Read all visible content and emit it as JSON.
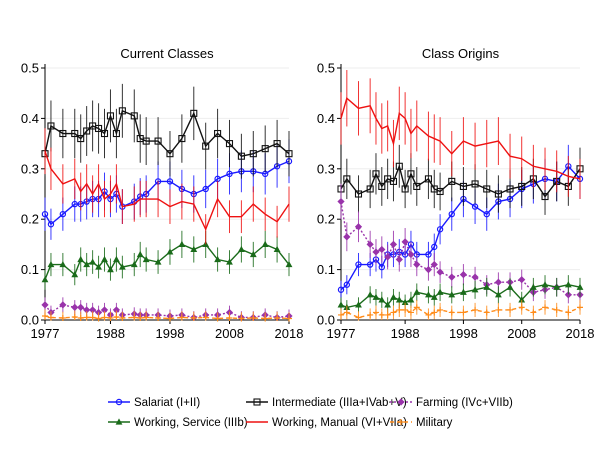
{
  "chart_data": [
    {
      "type": "line",
      "title": "Current Classes",
      "xlabel": "",
      "ylabel": "",
      "xlim": [
        1977,
        2018
      ],
      "ylim": [
        0,
        0.5
      ],
      "x_ticks": [
        1977,
        1988,
        1998,
        2008,
        2018
      ],
      "y_ticks": [
        "0.0",
        "0.1",
        "0.2",
        "0.3",
        "0.4",
        "0.5"
      ],
      "grid": "horizontal",
      "legend_position": "bottom",
      "series": [
        {
          "name": "Salariat (I+II)",
          "color": "#1a1aff",
          "marker": "circle",
          "x": [
            1977,
            1978,
            1980,
            1982,
            1983,
            1984,
            1985,
            1986,
            1987,
            1988,
            1989,
            1990,
            1992,
            1993,
            1994,
            1996,
            1998,
            2000,
            2002,
            2004,
            2006,
            2008,
            2010,
            2012,
            2014,
            2016,
            2018
          ],
          "y": [
            0.21,
            0.19,
            0.21,
            0.23,
            0.23,
            0.235,
            0.24,
            0.24,
            0.255,
            0.24,
            0.25,
            0.225,
            0.235,
            0.245,
            0.25,
            0.275,
            0.275,
            0.26,
            0.25,
            0.26,
            0.28,
            0.29,
            0.295,
            0.295,
            0.29,
            0.305,
            0.315
          ]
        },
        {
          "name": "Intermediate (IIIa+IVab+V)",
          "color": "#111111",
          "marker": "square",
          "x": [
            1977,
            1978,
            1980,
            1982,
            1983,
            1984,
            1985,
            1986,
            1987,
            1988,
            1989,
            1990,
            1992,
            1993,
            1994,
            1996,
            1998,
            2000,
            2002,
            2004,
            2006,
            2008,
            2010,
            2012,
            2014,
            2016,
            2018
          ],
          "y": [
            0.33,
            0.385,
            0.37,
            0.37,
            0.36,
            0.375,
            0.385,
            0.38,
            0.37,
            0.405,
            0.37,
            0.415,
            0.405,
            0.36,
            0.355,
            0.355,
            0.33,
            0.36,
            0.41,
            0.345,
            0.37,
            0.35,
            0.325,
            0.33,
            0.34,
            0.35,
            0.33
          ]
        },
        {
          "name": "Farming (IVc+VIIb)",
          "color": "#9933aa",
          "marker": "diamond",
          "x": [
            1977,
            1978,
            1980,
            1982,
            1983,
            1984,
            1985,
            1986,
            1987,
            1988,
            1989,
            1990,
            1992,
            1993,
            1994,
            1996,
            1998,
            2000,
            2002,
            2004,
            2006,
            2008,
            2010,
            2012,
            2014,
            2016,
            2018
          ],
          "y": [
            0.03,
            0.015,
            0.03,
            0.025,
            0.025,
            0.02,
            0.02,
            0.015,
            0.02,
            0.01,
            0.02,
            0.01,
            0.012,
            0.01,
            0.01,
            0.01,
            0.008,
            0.01,
            0.005,
            0.01,
            0.01,
            0.015,
            0.005,
            0.005,
            0.01,
            0.005,
            0.008
          ]
        },
        {
          "name": "Working, Service (IIIb)",
          "color": "#1a6b1a",
          "marker": "triangle",
          "x": [
            1977,
            1978,
            1980,
            1982,
            1983,
            1984,
            1985,
            1986,
            1987,
            1988,
            1989,
            1990,
            1992,
            1993,
            1994,
            1996,
            1998,
            2000,
            2002,
            2004,
            2006,
            2008,
            2010,
            2012,
            2014,
            2016,
            2018
          ],
          "y": [
            0.08,
            0.11,
            0.11,
            0.09,
            0.12,
            0.11,
            0.115,
            0.105,
            0.12,
            0.1,
            0.12,
            0.105,
            0.11,
            0.13,
            0.12,
            0.115,
            0.135,
            0.15,
            0.14,
            0.15,
            0.12,
            0.115,
            0.14,
            0.13,
            0.15,
            0.14,
            0.11
          ]
        },
        {
          "name": "Working, Manual (VI+VIIa)",
          "color": "#ee1111",
          "marker": "none",
          "x": [
            1977,
            1978,
            1980,
            1982,
            1983,
            1984,
            1985,
            1986,
            1987,
            1988,
            1989,
            1990,
            1992,
            1993,
            1994,
            1996,
            1998,
            2000,
            2002,
            2004,
            2006,
            2008,
            2010,
            2012,
            2014,
            2016,
            2018
          ],
          "y": [
            0.335,
            0.3,
            0.27,
            0.28,
            0.255,
            0.27,
            0.25,
            0.27,
            0.24,
            0.25,
            0.27,
            0.225,
            0.23,
            0.24,
            0.24,
            0.24,
            0.225,
            0.235,
            0.23,
            0.18,
            0.24,
            0.205,
            0.205,
            0.23,
            0.21,
            0.195,
            0.23
          ]
        },
        {
          "name": "Military",
          "color": "#ff8c1a",
          "marker": "plus",
          "x": [
            1977,
            1978,
            1980,
            1982,
            1983,
            1984,
            1985,
            1986,
            1987,
            1988,
            1989,
            1990,
            1992,
            1993,
            1994,
            1996,
            1998,
            2000,
            2002,
            2004,
            2006,
            2008,
            2010,
            2012,
            2014,
            2016,
            2018
          ],
          "y": [
            0.008,
            0.005,
            0.004,
            0.006,
            0.004,
            0.005,
            0.005,
            0.003,
            0.005,
            0.004,
            0.006,
            0.004,
            0.005,
            0.004,
            0.005,
            0.004,
            0.003,
            0.005,
            0.004,
            0.005,
            0.003,
            0.004,
            0.003,
            0.004,
            0.003,
            0.004,
            0.003
          ]
        }
      ]
    },
    {
      "type": "line",
      "title": "Class Origins",
      "xlabel": "",
      "ylabel": "",
      "xlim": [
        1977,
        2018
      ],
      "ylim": [
        0,
        0.5
      ],
      "x_ticks": [
        1977,
        1988,
        1998,
        2008,
        2018
      ],
      "y_ticks": [
        "0.0",
        "0.1",
        "0.2",
        "0.3",
        "0.4",
        "0.5"
      ],
      "grid": "horizontal",
      "legend_position": "bottom",
      "series": [
        {
          "name": "Salariat (I+II)",
          "color": "#1a1aff",
          "marker": "circle",
          "x": [
            1977,
            1978,
            1980,
            1982,
            1983,
            1984,
            1985,
            1986,
            1987,
            1988,
            1989,
            1990,
            1992,
            1993,
            1994,
            1996,
            1998,
            2000,
            2002,
            2004,
            2006,
            2008,
            2010,
            2012,
            2014,
            2016,
            2018
          ],
          "y": [
            0.06,
            0.07,
            0.11,
            0.11,
            0.12,
            0.105,
            0.13,
            0.13,
            0.135,
            0.13,
            0.15,
            0.13,
            0.13,
            0.145,
            0.18,
            0.21,
            0.24,
            0.225,
            0.21,
            0.235,
            0.24,
            0.26,
            0.27,
            0.28,
            0.275,
            0.305,
            0.28
          ]
        },
        {
          "name": "Intermediate (IIIa+IVab+V)",
          "color": "#111111",
          "marker": "square",
          "x": [
            1977,
            1978,
            1980,
            1982,
            1983,
            1984,
            1985,
            1986,
            1987,
            1988,
            1989,
            1990,
            1992,
            1993,
            1994,
            1996,
            1998,
            2000,
            2002,
            2004,
            2006,
            2008,
            2010,
            2012,
            2014,
            2016,
            2018
          ],
          "y": [
            0.26,
            0.28,
            0.25,
            0.26,
            0.29,
            0.265,
            0.28,
            0.275,
            0.305,
            0.26,
            0.29,
            0.265,
            0.28,
            0.26,
            0.255,
            0.275,
            0.265,
            0.27,
            0.26,
            0.25,
            0.26,
            0.265,
            0.28,
            0.245,
            0.275,
            0.265,
            0.3
          ]
        },
        {
          "name": "Farming (IVc+VIIb)",
          "color": "#9933aa",
          "marker": "diamond",
          "x": [
            1977,
            1978,
            1980,
            1982,
            1983,
            1984,
            1985,
            1986,
            1987,
            1988,
            1989,
            1990,
            1992,
            1993,
            1994,
            1996,
            1998,
            2000,
            2002,
            2004,
            2006,
            2008,
            2010,
            2012,
            2014,
            2016,
            2018
          ],
          "y": [
            0.235,
            0.165,
            0.185,
            0.15,
            0.135,
            0.14,
            0.125,
            0.15,
            0.12,
            0.155,
            0.13,
            0.11,
            0.1,
            0.11,
            0.095,
            0.085,
            0.09,
            0.085,
            0.07,
            0.075,
            0.075,
            0.08,
            0.055,
            0.06,
            0.065,
            0.05,
            0.05
          ]
        },
        {
          "name": "Working, Service (IIIb)",
          "color": "#1a6b1a",
          "marker": "triangle",
          "x": [
            1977,
            1978,
            1980,
            1982,
            1983,
            1984,
            1985,
            1986,
            1987,
            1988,
            1989,
            1990,
            1992,
            1993,
            1994,
            1996,
            1998,
            2000,
            2002,
            2004,
            2006,
            2008,
            2010,
            2012,
            2014,
            2016,
            2018
          ],
          "y": [
            0.03,
            0.025,
            0.03,
            0.05,
            0.045,
            0.04,
            0.03,
            0.045,
            0.04,
            0.035,
            0.04,
            0.055,
            0.05,
            0.045,
            0.055,
            0.05,
            0.055,
            0.06,
            0.065,
            0.05,
            0.065,
            0.04,
            0.065,
            0.07,
            0.065,
            0.07,
            0.065
          ]
        },
        {
          "name": "Working, Manual (VI+VIIa)",
          "color": "#ee1111",
          "marker": "none",
          "x": [
            1977,
            1978,
            1980,
            1982,
            1983,
            1984,
            1985,
            1986,
            1987,
            1988,
            1989,
            1990,
            1992,
            1993,
            1994,
            1996,
            1998,
            2000,
            2002,
            2004,
            2006,
            2008,
            2010,
            2012,
            2014,
            2016,
            2018
          ],
          "y": [
            0.4,
            0.44,
            0.42,
            0.425,
            0.4,
            0.38,
            0.385,
            0.35,
            0.41,
            0.4,
            0.37,
            0.385,
            0.365,
            0.36,
            0.355,
            0.33,
            0.355,
            0.345,
            0.35,
            0.355,
            0.325,
            0.32,
            0.305,
            0.3,
            0.295,
            0.285,
            0.28
          ]
        },
        {
          "name": "Military",
          "color": "#ff8c1a",
          "marker": "plus",
          "x": [
            1977,
            1978,
            1980,
            1982,
            1983,
            1984,
            1985,
            1986,
            1987,
            1988,
            1989,
            1990,
            1992,
            1993,
            1994,
            1996,
            1998,
            2000,
            2002,
            2004,
            2006,
            2008,
            2010,
            2012,
            2014,
            2016,
            2018
          ],
          "y": [
            0.01,
            0.015,
            0.005,
            0.01,
            0.015,
            0.01,
            0.01,
            0.015,
            0.02,
            0.02,
            0.015,
            0.025,
            0.01,
            0.015,
            0.02,
            0.015,
            0.015,
            0.02,
            0.015,
            0.02,
            0.02,
            0.025,
            0.015,
            0.025,
            0.02,
            0.015,
            0.025
          ]
        }
      ]
    }
  ],
  "legend": [
    {
      "label": "Salariat (I+II)",
      "color": "#1a1aff",
      "marker": "circle"
    },
    {
      "label": "Intermediate (IIIa+IVab+V)",
      "color": "#111111",
      "marker": "square"
    },
    {
      "label": "Farming (IVc+VIIb)",
      "color": "#9933aa",
      "marker": "diamond"
    },
    {
      "label": "Working, Service (IIIb)",
      "color": "#1a6b1a",
      "marker": "triangle"
    },
    {
      "label": "Working, Manual (VI+VIIa)",
      "color": "#ee1111",
      "marker": "none"
    },
    {
      "label": "Military",
      "color": "#ff8c1a",
      "marker": "plus"
    }
  ]
}
